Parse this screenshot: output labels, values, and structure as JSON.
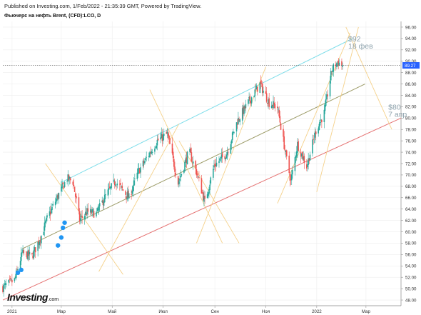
{
  "header": {
    "published": "Published on Investing.com, 1/Feb/2022 - 21:35:39 GMT, Powered by TradingView.",
    "symbol": "Фьючерс на нефть Brent, (CFD):LCO, D"
  },
  "brand": {
    "name": "Investing",
    "suffix": ".com"
  },
  "colors": {
    "up": "#26a69a",
    "down": "#ef5350",
    "grid": "#eeeeee",
    "channel_top": "#80deea",
    "channel_mid": "#9e9d6a",
    "channel_bottom": "#e57373",
    "fan": "#f5d18a",
    "last_price_bg": "#2962ff",
    "annotation": "#90a4ae",
    "marker": "#2196f3"
  },
  "chart_data": {
    "type": "candlestick",
    "title": "Фьючерс на нефть Brent, (CFD):LCO, D",
    "xlabel": "",
    "ylabel": "",
    "ylim": [
      47,
      97
    ],
    "xlim": [
      "2020-12-21",
      "2022-04-12"
    ],
    "grid": true,
    "y_ticks": [
      48,
      50,
      52,
      54,
      56,
      58,
      60,
      62,
      64,
      66,
      68,
      70,
      72,
      74,
      76,
      78,
      80,
      82,
      84,
      86,
      88,
      90,
      92,
      94,
      96
    ],
    "x_ticks": [
      {
        "date": "2021-01-01",
        "label": "2021"
      },
      {
        "date": "2021-03-01",
        "label": "Мар"
      },
      {
        "date": "2021-05-01",
        "label": "Май"
      },
      {
        "date": "2021-07-01",
        "label": "Июл"
      },
      {
        "date": "2021-09-01",
        "label": "Сен"
      },
      {
        "date": "2021-11-01",
        "label": "Ноя"
      },
      {
        "date": "2022-01-01",
        "label": "2022"
      },
      {
        "date": "2022-03-01",
        "label": "Мар"
      }
    ],
    "last_price": 89.27,
    "last_price_label": "89.27",
    "price_path": [
      [
        "2020-12-21",
        50.2
      ],
      [
        "2021-01-04",
        51.5
      ],
      [
        "2021-01-13",
        56.2
      ],
      [
        "2021-01-25",
        55.7
      ],
      [
        "2021-02-05",
        59.3
      ],
      [
        "2021-02-12",
        62.3
      ],
      [
        "2021-02-25",
        66.3
      ],
      [
        "2021-03-08",
        69.4
      ],
      [
        "2021-03-15",
        68.8
      ],
      [
        "2021-03-23",
        62.1
      ],
      [
        "2021-04-01",
        63.5
      ],
      [
        "2021-04-12",
        63.2
      ],
      [
        "2021-04-23",
        66.3
      ],
      [
        "2021-05-05",
        68.9
      ],
      [
        "2021-05-21",
        66.0
      ],
      [
        "2021-06-01",
        70.5
      ],
      [
        "2021-06-24",
        76.0
      ],
      [
        "2021-07-06",
        77.2
      ],
      [
        "2021-07-19",
        68.6
      ],
      [
        "2021-08-01",
        74.2
      ],
      [
        "2021-08-10",
        70.5
      ],
      [
        "2021-08-20",
        65.2
      ],
      [
        "2021-08-31",
        71.6
      ],
      [
        "2021-09-15",
        73.8
      ],
      [
        "2021-09-28",
        79.5
      ],
      [
        "2021-10-10",
        82.5
      ],
      [
        "2021-10-25",
        86.0
      ],
      [
        "2021-11-05",
        82.7
      ],
      [
        "2021-11-15",
        81.9
      ],
      [
        "2021-11-26",
        72.7
      ],
      [
        "2021-12-01",
        68.9
      ],
      [
        "2021-12-09",
        75.4
      ],
      [
        "2021-12-20",
        71.5
      ],
      [
        "2021-12-31",
        77.8
      ],
      [
        "2022-01-10",
        80.9
      ],
      [
        "2022-01-19",
        88.4
      ],
      [
        "2022-01-26",
        89.9
      ],
      [
        "2022-02-01",
        89.27
      ]
    ],
    "lines": [
      {
        "name": "channel-top",
        "color_key": "channel_top",
        "points": [
          [
            "2021-03-01",
            68.7
          ],
          [
            "2022-02-13",
            94.0
          ]
        ]
      },
      {
        "name": "channel-mid",
        "color_key": "channel_mid",
        "points": [
          [
            "2021-01-13",
            57.0
          ],
          [
            "2022-02-28",
            86.0
          ]
        ]
      },
      {
        "name": "channel-bottom",
        "color_key": "channel_bottom",
        "points": [
          [
            "2020-12-21",
            48.0
          ],
          [
            "2022-04-12",
            80.0
          ]
        ]
      }
    ],
    "fan_lines": [
      [
        [
          "2021-02-10",
          72.0
        ],
        [
          "2021-05-14",
          52.5
        ]
      ],
      [
        [
          "2021-04-15",
          53.0
        ],
        [
          "2021-07-20",
          79.0
        ]
      ],
      [
        [
          "2021-06-15",
          85.0
        ],
        [
          "2021-09-10",
          58.0
        ]
      ],
      [
        [
          "2021-07-20",
          76.0
        ],
        [
          "2021-09-30",
          58.0
        ]
      ],
      [
        [
          "2021-08-10",
          58.0
        ],
        [
          "2021-11-01",
          89.0
        ]
      ],
      [
        [
          "2021-11-15",
          65.0
        ],
        [
          "2022-02-10",
          95.0
        ]
      ],
      [
        [
          "2022-01-01",
          67.0
        ],
        [
          "2022-02-20",
          96.0
        ]
      ],
      [
        [
          "2022-02-05",
          96.0
        ],
        [
          "2022-04-01",
          78.0
        ]
      ]
    ],
    "annotations": [
      {
        "price": "$92",
        "date": "18 фев",
        "at": [
          "2022-02-18",
          92
        ]
      },
      {
        "price": "$80",
        "date": "7 апр",
        "at": [
          "2022-04-07",
          80
        ]
      }
    ],
    "event_markers": [
      {
        "date": "2021-01-08",
        "price": 52.8
      },
      {
        "date": "2021-01-12",
        "price": 53.3
      },
      {
        "date": "2021-02-25",
        "price": 57.6
      },
      {
        "date": "2021-03-01",
        "price": 59.0
      },
      {
        "date": "2021-03-03",
        "price": 60.7
      },
      {
        "date": "2021-03-05",
        "price": 61.6
      }
    ]
  }
}
